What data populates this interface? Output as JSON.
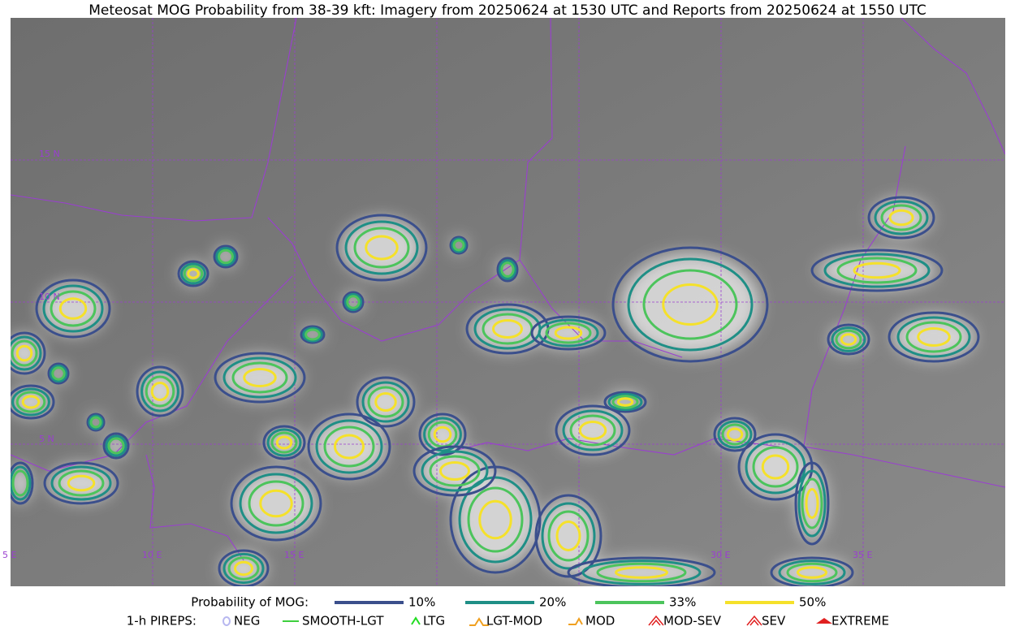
{
  "title": "Meteosat MOG Probability from 38-39 kft: Imagery from 20250624 at 1530 UTC and Reports from 20250624 at 1550 UTC",
  "map": {
    "lat_labels": [
      "15 N",
      "10 N",
      "5 N"
    ],
    "lon_labels": [
      "5 E",
      "10 E",
      "15 E",
      "30 E",
      "35 E"
    ]
  },
  "legend": {
    "probability": {
      "label": "Probability of MOG:",
      "items": [
        {
          "label": "10%",
          "color": "#3b4f8c"
        },
        {
          "label": "20%",
          "color": "#1f8f86"
        },
        {
          "label": "33%",
          "color": "#4cc45c"
        },
        {
          "label": "50%",
          "color": "#f5e12a"
        }
      ]
    },
    "pireps": {
      "label": "1-h PIREPS:",
      "items": [
        {
          "label": "NEG",
          "color": "#b8b8f0"
        },
        {
          "label": "SMOOTH-LGT",
          "color": "#3ecf3e"
        },
        {
          "label": "LTG",
          "color": "#22dd22"
        },
        {
          "label": "LGT-MOD",
          "color": "#f0a020"
        },
        {
          "label": "MOD",
          "color": "#f0a020"
        },
        {
          "label": "MOD-SEV",
          "color": "#e02020"
        },
        {
          "label": "SEV",
          "color": "#e02020"
        },
        {
          "label": "EXTREME",
          "color": "#e02020"
        }
      ]
    }
  }
}
